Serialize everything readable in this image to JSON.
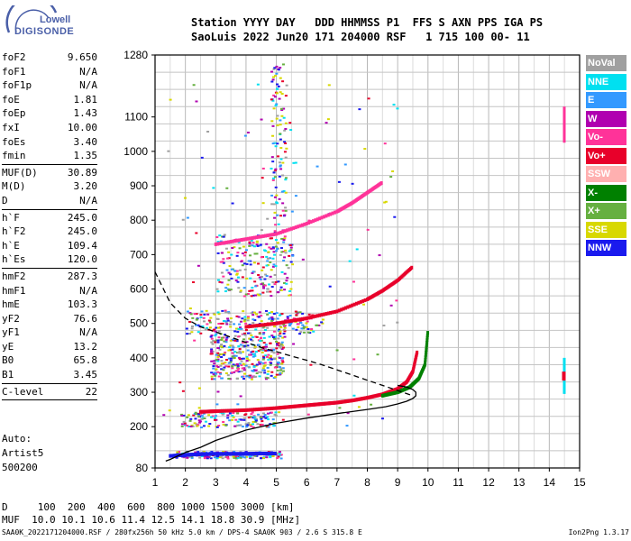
{
  "logo": {
    "line1": "Lowell",
    "line2": "DIGISONDE"
  },
  "header": {
    "line1": "Station YYYY DAY   DDD HHMMSS P1  FFS S AXN PPS IGA PS",
    "line2": "SaoLuis 2022 Jun20 171 204000 RSF   1 715 100 00- 11"
  },
  "param_groups": [
    [
      {
        "name": "foF2",
        "value": "9.650"
      },
      {
        "name": "foF1",
        "value": "N/A"
      },
      {
        "name": "foF1p",
        "value": "N/A"
      },
      {
        "name": "foE",
        "value": "1.81"
      },
      {
        "name": "foEp",
        "value": "1.43"
      },
      {
        "name": "fxI",
        "value": "10.00"
      },
      {
        "name": "foEs",
        "value": "3.40"
      },
      {
        "name": "fmin",
        "value": "1.35"
      }
    ],
    [
      {
        "name": "MUF(D)",
        "value": "30.89"
      },
      {
        "name": "M(D)",
        "value": "3.20"
      },
      {
        "name": "D",
        "value": "N/A"
      }
    ],
    [
      {
        "name": "h`F",
        "value": "245.0"
      },
      {
        "name": "h`F2",
        "value": "245.0"
      },
      {
        "name": "h`E",
        "value": "109.4"
      },
      {
        "name": "h`Es",
        "value": "120.0"
      }
    ],
    [
      {
        "name": "hmF2",
        "value": "287.3"
      },
      {
        "name": "hmF1",
        "value": "N/A"
      },
      {
        "name": "hmE",
        "value": "103.3"
      },
      {
        "name": "yF2",
        "value": "76.6"
      },
      {
        "name": "yF1",
        "value": "N/A"
      },
      {
        "name": "yE",
        "value": "13.2"
      },
      {
        "name": "B0",
        "value": "65.8"
      },
      {
        "name": "B1",
        "value": "3.45"
      }
    ],
    [
      {
        "name": "C-level",
        "value": "22"
      }
    ]
  ],
  "auto": {
    "line1": "Auto:",
    "line2": "Artist5",
    "line3": "500200"
  },
  "legend": [
    {
      "label": "NoVal",
      "color": "#a0a0a0"
    },
    {
      "label": "NNE",
      "color": "#00e0f0"
    },
    {
      "label": "E",
      "color": "#3399ff"
    },
    {
      "label": "W",
      "color": "#b000b0"
    },
    {
      "label": "Vo-",
      "color": "#ff3399"
    },
    {
      "label": "Vo+",
      "color": "#e8002a"
    },
    {
      "label": "SSW",
      "color": "#ffb0b0"
    },
    {
      "label": "X-",
      "color": "#008000"
    },
    {
      "label": "X+",
      "color": "#66b040"
    },
    {
      "label": "SSE",
      "color": "#d8d800"
    },
    {
      "label": "NNW",
      "color": "#1a1aee"
    }
  ],
  "bottom": {
    "d_line": "D     100  200  400  600  800 1000 1500 3000 [km]",
    "muf_line": "MUF  10.0 10.1 10.6 11.4 12.5 14.1 18.8 30.9 [MHz]"
  },
  "footer": {
    "left": "SAA0K_2022171204000.RSF / 280fx256h 50 kHz 5.0 km / DPS-4 SAA0K 903 / 2.6 S 315.8 E",
    "right": "Ion2Png 1.3.17"
  },
  "chart_data": {
    "type": "scatter",
    "x_ticks": [
      1,
      2,
      3,
      4,
      5,
      6,
      7,
      8,
      9,
      10,
      11,
      12,
      13,
      14,
      15
    ],
    "y_ticks": [
      80,
      200,
      300,
      400,
      500,
      600,
      700,
      800,
      900,
      1000,
      1100,
      1280
    ],
    "xlim": [
      1,
      15
    ],
    "ylim": [
      80,
      1280
    ],
    "grid": true,
    "series": [
      {
        "name": "F2 trace O",
        "color": "#e8002a",
        "x": [
          2.5,
          3,
          4,
          5,
          5.5,
          6,
          6.5,
          7,
          7.5,
          8,
          8.5,
          9,
          9.3,
          9.5,
          9.65
        ],
        "y": [
          243,
          245,
          248,
          254,
          258,
          262,
          266,
          270,
          276,
          284,
          294,
          310,
          330,
          360,
          420
        ]
      },
      {
        "name": "F2 trace X",
        "color": "#008000",
        "x": [
          8.5,
          9,
          9.4,
          9.7,
          9.9,
          10.0
        ],
        "y": [
          290,
          300,
          315,
          340,
          380,
          480
        ]
      },
      {
        "name": "F2 2-hop",
        "color": "#e8002a",
        "x": [
          4,
          5,
          6,
          7,
          8,
          8.5,
          9,
          9.5
        ],
        "y": [
          490,
          500,
          515,
          535,
          570,
          595,
          625,
          665
        ]
      },
      {
        "name": "F2 3-hop",
        "color": "#ff3399",
        "x": [
          3,
          4,
          5,
          6,
          7,
          7.5,
          8,
          8.5
        ],
        "y": [
          730,
          745,
          760,
          790,
          825,
          850,
          880,
          910
        ]
      },
      {
        "name": "E region",
        "color": "#1a1aee",
        "x": [
          1.5,
          2,
          2.5,
          3,
          3.5,
          4,
          4.5,
          5
        ],
        "y": [
          115,
          118,
          120,
          121,
          121,
          121,
          122,
          122
        ]
      }
    ],
    "profile_solid": {
      "x": [
        1.35,
        1.5,
        2,
        2.5,
        3,
        4,
        5,
        6,
        7,
        8,
        8.6,
        9.0,
        9.3,
        9.5,
        9.6,
        9.6,
        9.5,
        9.3,
        9.0
      ],
      "y": [
        100,
        105,
        125,
        140,
        160,
        190,
        210,
        225,
        238,
        250,
        258,
        266,
        274,
        282,
        290,
        300,
        308,
        315,
        320
      ]
    },
    "profile_dashed": {
      "x": [
        1,
        1.5,
        2,
        2.5,
        3,
        3.5,
        4,
        4.5,
        5,
        5.5,
        6,
        6.5,
        7,
        7.5,
        8,
        8.5,
        9,
        9.5
      ],
      "y": [
        650,
        560,
        515,
        490,
        475,
        460,
        445,
        430,
        418,
        405,
        393,
        380,
        365,
        350,
        335,
        320,
        305,
        290
      ]
    },
    "scatter_colors": [
      "#1a1aee",
      "#b000b0",
      "#e8002a",
      "#ff3399",
      "#d8d800",
      "#66b040",
      "#3399ff",
      "#00e0f0",
      "#a0a0a0"
    ]
  }
}
